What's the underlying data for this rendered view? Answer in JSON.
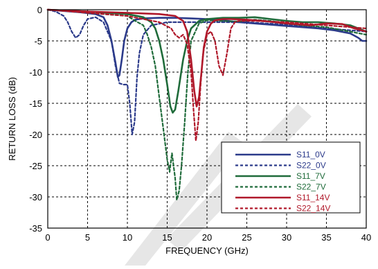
{
  "colors": {
    "S11_0V": "#2b3a8a",
    "S22_0V": "#2b3a8a",
    "S11_7V": "#1f6b3a",
    "S22_7V": "#1f6b3a",
    "S11_14V": "#b0182a",
    "S22_14V": "#b0182a",
    "watermark": "#e6e6e6"
  },
  "chart_data": {
    "type": "line",
    "title": "",
    "xlabel": "FREQUENCY (GHz)",
    "ylabel": "RETURN LOSS (dB)",
    "xlim": [
      0,
      40
    ],
    "ylim": [
      -35,
      0
    ],
    "xticks": [
      "0",
      "5",
      "10",
      "15",
      "20",
      "25",
      "30",
      "35",
      "40"
    ],
    "yticks": [
      "0",
      "-5",
      "-10",
      "-15",
      "-20",
      "-25",
      "-30",
      "-35"
    ],
    "grid": true,
    "legend_position": "bottom-right",
    "series": [
      {
        "name": "S11_0V",
        "style": "solid",
        "x": [
          0,
          2,
          4,
          6,
          7,
          7.5,
          8,
          8.5,
          8.8,
          9,
          9.3,
          9.6,
          10,
          10.5,
          11,
          12,
          14,
          16,
          18,
          20,
          22,
          24,
          26,
          28,
          30,
          32,
          34,
          36,
          38,
          39,
          39.5,
          40
        ],
        "y": [
          0,
          -0.2,
          -0.4,
          -0.7,
          -1.2,
          -2.5,
          -5,
          -8.5,
          -10.8,
          -10.5,
          -8,
          -5,
          -3,
          -2,
          -1.6,
          -1.4,
          -1.3,
          -1.3,
          -1.4,
          -1.5,
          -1.7,
          -2,
          -2.2,
          -2.4,
          -2.6,
          -2.8,
          -3,
          -3.3,
          -3.8,
          -4.5,
          -5,
          -5
        ]
      },
      {
        "name": "S22_0V",
        "style": "dashed",
        "x": [
          0,
          1,
          2,
          2.5,
          3,
          3.5,
          4,
          4.5,
          5,
          6,
          7,
          8,
          8.5,
          9,
          9.5,
          10,
          10.3,
          10.6,
          10.9,
          11.2,
          11.5,
          12,
          13,
          15,
          17,
          20,
          25,
          30,
          35,
          40
        ],
        "y": [
          0,
          -0.3,
          -1,
          -2,
          -3.5,
          -4.5,
          -4,
          -2.5,
          -1.5,
          -1.2,
          -2,
          -5,
          -9,
          -11.8,
          -12,
          -12,
          -15,
          -20,
          -18,
          -11,
          -7,
          -4,
          -2.5,
          -2,
          -2,
          -2,
          -2,
          -2.4,
          -3,
          -3.5
        ]
      },
      {
        "name": "S11_7V",
        "style": "solid",
        "x": [
          0,
          5,
          10,
          12,
          13,
          13.5,
          14,
          14.5,
          15,
          15.4,
          15.7,
          16,
          16.4,
          17,
          17.5,
          18,
          19,
          20,
          22,
          24,
          26,
          28,
          30,
          32,
          34,
          36,
          38,
          39,
          40
        ],
        "y": [
          0,
          -0.3,
          -0.7,
          -1.2,
          -2,
          -3,
          -5,
          -8,
          -12,
          -15.5,
          -16.5,
          -16,
          -13,
          -8,
          -5,
          -3,
          -1.8,
          -1.5,
          -1.3,
          -1.3,
          -1.2,
          -1.5,
          -1.8,
          -2,
          -2,
          -2.2,
          -2.5,
          -3,
          -3.5
        ]
      },
      {
        "name": "S22_7V",
        "style": "dashed",
        "x": [
          0,
          5,
          10,
          11,
          12,
          12.5,
          13,
          13.5,
          14,
          14.5,
          15,
          15.3,
          15.6,
          16,
          16.2,
          16.5,
          16.8,
          17.2,
          17.6,
          18,
          19,
          20,
          22,
          24,
          26,
          28,
          30,
          32,
          35,
          40
        ],
        "y": [
          0,
          -0.5,
          -1,
          -1.8,
          -2.5,
          -4,
          -6,
          -9,
          -14,
          -19,
          -24,
          -26,
          -23,
          -27,
          -30.5,
          -29,
          -25,
          -18,
          -10,
          -5,
          -2.2,
          -1.7,
          -1.8,
          -1.9,
          -1.6,
          -1.8,
          -2.2,
          -2.5,
          -2.8,
          -4
        ]
      },
      {
        "name": "S11_14V",
        "style": "solid",
        "x": [
          0,
          5,
          10,
          14,
          16,
          17,
          17.5,
          18,
          18.4,
          18.7,
          19,
          19.3,
          19.6,
          20,
          20.5,
          21,
          22,
          23,
          25,
          27,
          30,
          33,
          35,
          37,
          38.5,
          40
        ],
        "y": [
          0,
          -0.3,
          -0.5,
          -0.7,
          -1,
          -1.8,
          -3.5,
          -8,
          -13,
          -15.5,
          -14,
          -10,
          -6,
          -3.5,
          -2.2,
          -1.7,
          -1.5,
          -1.5,
          -1.6,
          -1.8,
          -2.2,
          -2.5,
          -2.2,
          -2.3,
          -3,
          -3.5
        ]
      },
      {
        "name": "S22_14V",
        "style": "dashed",
        "x": [
          0,
          5,
          10,
          14,
          15.5,
          16,
          16.5,
          17,
          17.5,
          18,
          18.3,
          18.6,
          18.9,
          19.2,
          19.5,
          20,
          20.5,
          21,
          21.5,
          22,
          22.5,
          23,
          23.5,
          24,
          26,
          30,
          35,
          40
        ],
        "y": [
          0,
          -0.5,
          -1,
          -2,
          -3,
          -4,
          -4.5,
          -4,
          -5.5,
          -10,
          -16,
          -21,
          -18,
          -12,
          -7,
          -4,
          -3.5,
          -5,
          -9,
          -10.5,
          -7,
          -3,
          -2,
          -1.8,
          -1.8,
          -2,
          -2.5,
          -3
        ]
      }
    ]
  }
}
